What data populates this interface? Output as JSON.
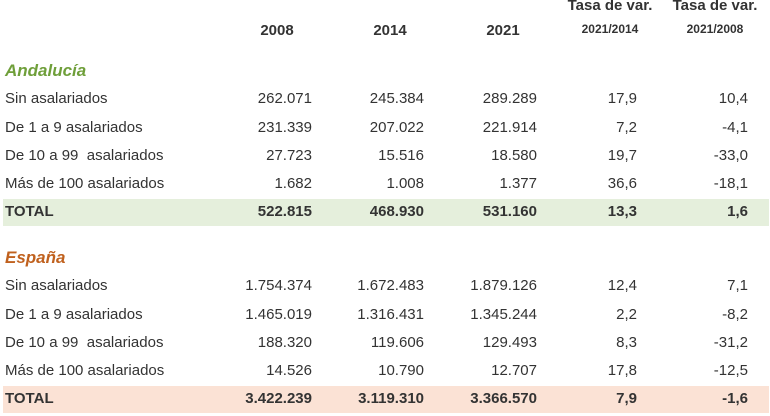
{
  "header": {
    "columns": [
      {
        "label": "2008"
      },
      {
        "label": "2014"
      },
      {
        "label": "2021"
      },
      {
        "label": "Tasa de var.",
        "sublabel": "2021/2014"
      },
      {
        "label": "Tasa de var.",
        "sublabel": "2021/2008"
      }
    ]
  },
  "sections": [
    {
      "title": "Andalucía",
      "rows": [
        [
          "Sin asalariados",
          "262.071",
          "245.384",
          "289.289",
          "17,9",
          "10,4"
        ],
        [
          "De 1 a 9 asalariados",
          "231.339",
          "207.022",
          "221.914",
          "7,2",
          "-4,1"
        ],
        [
          "De 10 a 99  asalariados",
          "27.723",
          "15.516",
          "18.580",
          "19,7",
          "-33,0"
        ],
        [
          "Más de 100 asalariados",
          "1.682",
          "1.008",
          "1.377",
          "36,6",
          "-18,1"
        ]
      ],
      "total": [
        "TOTAL",
        "522.815",
        "468.930",
        "531.160",
        "13,3",
        "1,6"
      ]
    },
    {
      "title": "España",
      "rows": [
        [
          "Sin asalariados",
          "1.754.374",
          "1.672.483",
          "1.879.126",
          "12,4",
          "7,1"
        ],
        [
          "De 1 a 9 asalariados",
          "1.465.019",
          "1.316.431",
          "1.345.244",
          "2,2",
          "-8,2"
        ],
        [
          "De 10 a 99  asalariados",
          "188.320",
          "119.606",
          "129.493",
          "8,3",
          "-31,2"
        ],
        [
          "Más de 100 asalariados",
          "14.526",
          "10.790",
          "12.707",
          "17,8",
          "-12,5"
        ]
      ],
      "total": [
        "TOTAL",
        "3.422.239",
        "3.119.310",
        "3.366.570",
        "7,9",
        "-1,6"
      ]
    }
  ]
}
